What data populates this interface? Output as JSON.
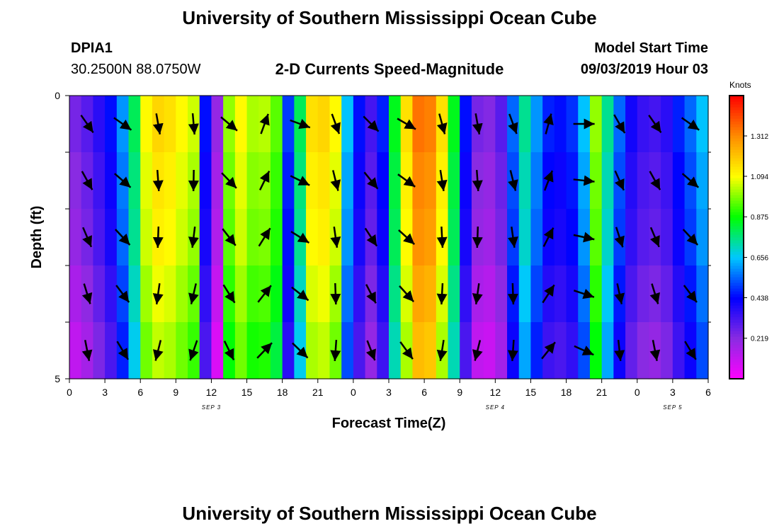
{
  "page": {
    "title_top": "University of Southern Mississippi Ocean Cube",
    "title_bottom": "University of Southern Mississippi Ocean Cube",
    "station_id": "DPIA1",
    "station_coords": "30.2500N 88.0750W",
    "product_title": "2-D Currents Speed-Magnitude",
    "model_start_label": "Model Start Time",
    "model_start_value": "09/03/2019 Hour 03",
    "colorbar_unit": "Knots"
  },
  "chart_data": {
    "type": "heatmap",
    "title": "2-D Currents Speed-Magnitude",
    "xlabel": "Forecast Time(Z)",
    "ylabel": "Depth (ft)",
    "x_tick_labels": [
      "0",
      "3",
      "6",
      "9",
      "12",
      "15",
      "18",
      "21",
      "0",
      "3",
      "6",
      "9",
      "12",
      "15",
      "18",
      "21",
      "0",
      "3",
      "6"
    ],
    "x_range_hours": [
      0,
      54
    ],
    "day_labels": [
      {
        "text": "SEP 3",
        "hour": 12
      },
      {
        "text": "SEP 4",
        "hour": 36
      },
      {
        "text": "SEP 5",
        "hour": 51
      }
    ],
    "y_tick_labels": [
      "0",
      "5"
    ],
    "y_range_ft": [
      0,
      5
    ],
    "depth_rows": 5,
    "colorbar": {
      "label": "Knots",
      "ticks": [
        "0.219",
        "0.438",
        "0.656",
        "0.875",
        "1.094",
        "1.312"
      ],
      "tick_values": [
        0.219,
        0.438,
        0.656,
        0.875,
        1.094,
        1.312
      ],
      "range": [
        0,
        1.53
      ],
      "colors": [
        "#ff00ff",
        "#8a2be2",
        "#0000ff",
        "#00c8ff",
        "#00ff00",
        "#ffff00",
        "#ff8c00",
        "#ff0000"
      ]
    },
    "speed_knots_by_hour": [
      0.2,
      0.25,
      0.32,
      0.4,
      0.55,
      0.75,
      1.05,
      1.12,
      1.1,
      1.05,
      1.0,
      0.4,
      0.15,
      0.95,
      1.05,
      0.97,
      0.98,
      0.9,
      0.45,
      0.75,
      1.1,
      1.12,
      1.05,
      0.6,
      0.4,
      0.28,
      0.42,
      0.8,
      1.1,
      1.3,
      1.28,
      1.1,
      0.8,
      0.4,
      0.2,
      0.18,
      0.25,
      0.5,
      0.7,
      0.55,
      0.42,
      0.4,
      0.44,
      0.6,
      0.95,
      0.7,
      0.5,
      0.36,
      0.3,
      0.28,
      0.32,
      0.42,
      0.5,
      0.6
    ],
    "speed_row_offsets": [
      0.05,
      0.02,
      0.0,
      -0.04,
      -0.08
    ]
  }
}
